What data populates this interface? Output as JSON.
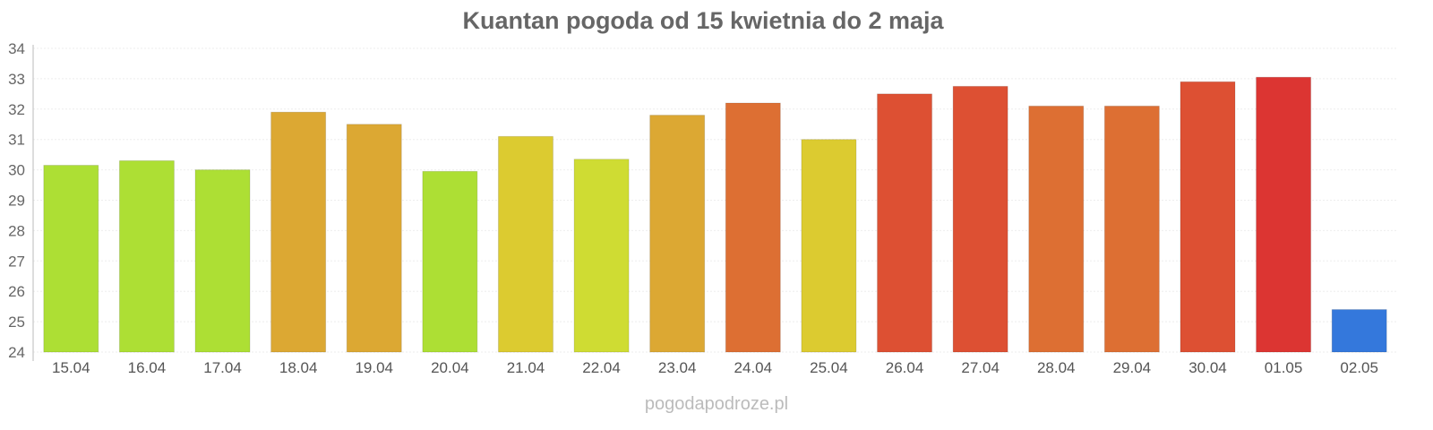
{
  "chart_data": {
    "type": "bar",
    "title": "Kuantan pogoda od 15 kwietnia do 2 maja",
    "xlabel": "",
    "ylabel": "",
    "ylim": [
      24,
      34
    ],
    "yticks": [
      24,
      25,
      26,
      27,
      28,
      29,
      30,
      31,
      32,
      33,
      34
    ],
    "grid": true,
    "categories": [
      "15.04",
      "16.04",
      "17.04",
      "18.04",
      "19.04",
      "20.04",
      "21.04",
      "22.04",
      "23.04",
      "24.04",
      "25.04",
      "26.04",
      "27.04",
      "28.04",
      "29.04",
      "30.04",
      "01.05",
      "02.05"
    ],
    "values": [
      30.15,
      30.3,
      30.0,
      31.9,
      31.5,
      29.95,
      31.1,
      30.35,
      31.8,
      32.2,
      31.0,
      32.5,
      32.75,
      32.1,
      32.1,
      32.9,
      33.05,
      25.4
    ],
    "colors": [
      "#addf34",
      "#addf34",
      "#addf34",
      "#dca833",
      "#dca833",
      "#addf34",
      "#dccb30",
      "#cfdc33",
      "#dca833",
      "#dd6f33",
      "#dccb30",
      "#dd5033",
      "#dd5033",
      "#dd6f33",
      "#dd6f33",
      "#dd5033",
      "#dc3532",
      "#3478dc"
    ]
  },
  "footer": "pogodapodroze.pl"
}
